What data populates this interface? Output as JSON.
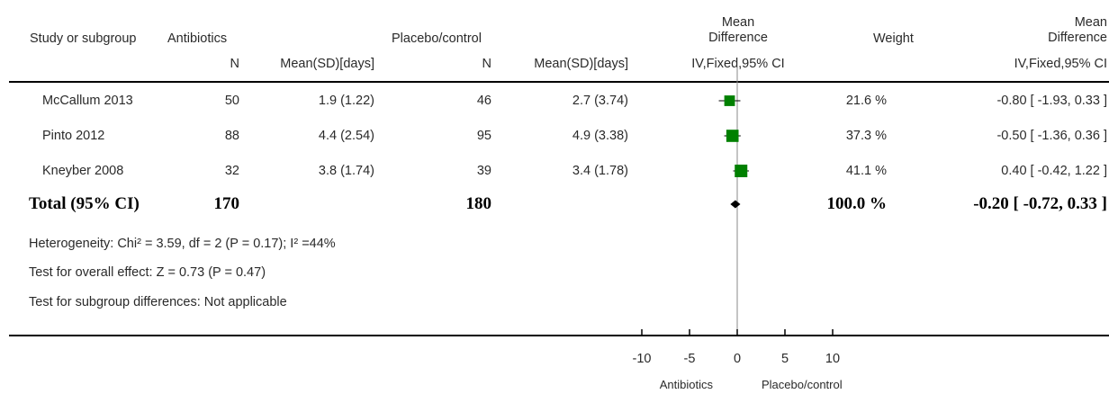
{
  "headers": {
    "study": "Study or subgroup",
    "antibiotics": "Antibiotics",
    "placebo": "Placebo/control",
    "md_line1": "Mean",
    "md_line2": "Difference",
    "weight": "Weight",
    "md2_line1": "Mean",
    "md2_line2": "Difference",
    "n1": "N",
    "mean1": "Mean(SD)[days]",
    "n2": "N",
    "mean2": "Mean(SD)[days]",
    "method": "IV,Fixed,95% CI",
    "method2": "IV,Fixed,95% CI"
  },
  "rows": [
    {
      "study": "McCallum 2013",
      "n1": "50",
      "ms1": "1.9 (1.22)",
      "n2": "46",
      "ms2": "2.7 (3.74)",
      "weight": "21.6 %",
      "ci": "-0.80 [ -1.93, 0.33 ]"
    },
    {
      "study": "Pinto 2012",
      "n1": "88",
      "ms1": "4.4 (2.54)",
      "n2": "95",
      "ms2": "4.9 (3.38)",
      "weight": "37.3 %",
      "ci": "-0.50 [ -1.36, 0.36 ]"
    },
    {
      "study": "Kneyber 2008",
      "n1": "32",
      "ms1": "3.8 (1.74)",
      "n2": "39",
      "ms2": "3.4 (1.78)",
      "weight": "41.1 %",
      "ci": "0.40 [ -0.42, 1.22 ]"
    }
  ],
  "total": {
    "label": "Total (95% CI)",
    "n1": "170",
    "n2": "180",
    "weight": "100.0 %",
    "ci": "-0.20 [ -0.72, 0.33 ]"
  },
  "notes": {
    "heterogeneity": "Heterogeneity: Chi² = 3.59, df = 2 (P = 0.17); I² =44%",
    "overall": "Test for overall effect: Z = 0.73 (P = 0.47)",
    "subgroup": "Test for subgroup differences: Not applicable"
  },
  "axis_labels": {
    "left": "Antibiotics",
    "right": "Placebo/control"
  },
  "colors": {
    "square": "#008000",
    "diamond": "#000000",
    "line": "#000000"
  },
  "chart_data": {
    "type": "scatter",
    "xlim": [
      -10,
      10
    ],
    "ticks": [
      -10,
      -5,
      0,
      5,
      10
    ],
    "tick_labels": [
      "-10",
      "-5",
      "0",
      "5",
      "10"
    ],
    "reference_line": 0,
    "studies": [
      {
        "name": "McCallum 2013",
        "mean": -0.8,
        "lower": -1.93,
        "upper": 0.33,
        "weight": 21.6
      },
      {
        "name": "Pinto 2012",
        "mean": -0.5,
        "lower": -1.36,
        "upper": 0.36,
        "weight": 37.3
      },
      {
        "name": "Kneyber 2008",
        "mean": 0.4,
        "lower": -0.42,
        "upper": 1.22,
        "weight": 41.1
      }
    ],
    "pooled": {
      "mean": -0.2,
      "lower": -0.72,
      "upper": 0.33
    }
  }
}
